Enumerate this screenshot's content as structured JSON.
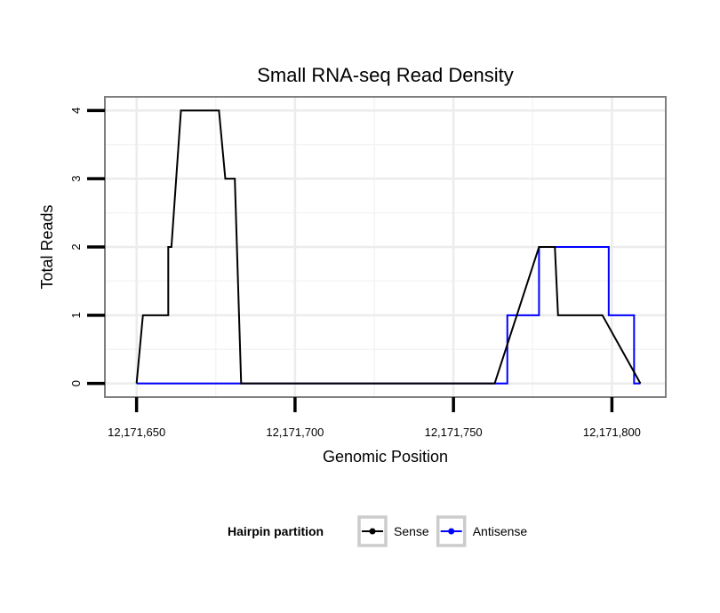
{
  "chart_data": {
    "type": "line",
    "title": "Small RNA-seq Read Density",
    "xlabel": "Genomic Position",
    "ylabel": "Total Reads",
    "xlim": [
      12171640,
      12171817
    ],
    "ylim": [
      -0.2,
      4.2
    ],
    "x_ticks": [
      12171650,
      12171700,
      12171750,
      12171800
    ],
    "x_tick_labels": [
      "12,171,650",
      "12,171,700",
      "12,171,750",
      "12,171,800"
    ],
    "y_ticks": [
      0,
      1,
      2,
      3,
      4
    ],
    "y_tick_labels": [
      "0",
      "1",
      "2",
      "3",
      "4"
    ],
    "grid": true,
    "legend": {
      "title": "Hairpin partition",
      "position": "bottom",
      "entries": [
        "Sense",
        "Antisense"
      ]
    },
    "series": [
      {
        "name": "Sense",
        "color": "#000000",
        "x": [
          12171650,
          12171652,
          12171652,
          12171660,
          12171660,
          12171661,
          12171661,
          12171664,
          12171664,
          12171676,
          12171676,
          12171678,
          12171678,
          12171681,
          12171681,
          12171683,
          12171683,
          12171763,
          12171763,
          12171770,
          12171770,
          12171777,
          12171777,
          12171782,
          12171782,
          12171783,
          12171783,
          12171797,
          12171797,
          12171809
        ],
        "values": [
          0,
          1,
          1,
          1,
          2,
          2,
          2,
          4,
          4,
          4,
          4,
          3,
          3,
          3,
          3,
          0,
          0,
          0,
          0,
          1,
          1,
          2,
          2,
          2,
          2,
          1,
          1,
          1,
          1,
          0
        ]
      },
      {
        "name": "Antisense",
        "color": "#0000ff",
        "x": [
          12171650,
          12171767,
          12171767,
          12171777,
          12171777,
          12171799,
          12171799,
          12171807,
          12171807,
          12171809
        ],
        "values": [
          0,
          0,
          1,
          1,
          2,
          2,
          1,
          1,
          0,
          0
        ]
      }
    ]
  }
}
